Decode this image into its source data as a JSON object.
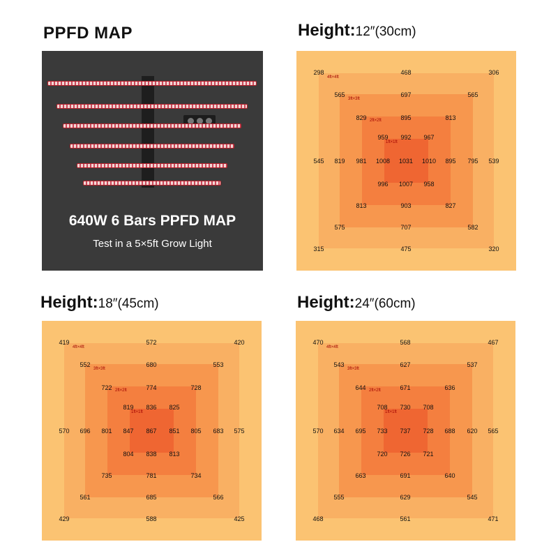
{
  "main_title": "PPFD MAP",
  "photo": {
    "caption": "640W 6 Bars PPFD MAP",
    "subcaption": "Test in a 5×5ft Grow Light"
  },
  "colors": {
    "zone_5x5": "#fbc372",
    "zone_4x4": "#f9b063",
    "zone_3x3": "#f7974e",
    "zone_2x2": "#f47f3f",
    "zone_1x1": "#ef6632",
    "photo_bg": "#3a3a3a"
  },
  "zone_labels": [
    "4ft×4ft",
    "3ft×3ft",
    "2ft×2ft",
    "1ft×1ft"
  ],
  "maps": [
    {
      "title_label": "Height:",
      "title_value": "12″(30cm)",
      "rows": [
        [
          "298",
          "468",
          "306"
        ],
        [
          "565",
          "697",
          "565"
        ],
        [
          "829",
          "895",
          "813"
        ],
        [
          "959",
          "992",
          "967"
        ],
        [
          "545",
          "819",
          "981",
          "1008",
          "1031",
          "1010",
          "895",
          "795",
          "539"
        ],
        [
          "996",
          "1007",
          "958"
        ],
        [
          "813",
          "903",
          "827"
        ],
        [
          "575",
          "707",
          "582"
        ],
        [
          "315",
          "475",
          "320"
        ]
      ]
    },
    {
      "title_label": "Height:",
      "title_value": "18″(45cm)",
      "rows": [
        [
          "419",
          "572",
          "420"
        ],
        [
          "552",
          "680",
          "553"
        ],
        [
          "722",
          "774",
          "728"
        ],
        [
          "819",
          "836",
          "825"
        ],
        [
          "570",
          "696",
          "801",
          "847",
          "867",
          "851",
          "805",
          "683",
          "575"
        ],
        [
          "804",
          "838",
          "813"
        ],
        [
          "735",
          "781",
          "734"
        ],
        [
          "561",
          "685",
          "566"
        ],
        [
          "429",
          "588",
          "425"
        ]
      ]
    },
    {
      "title_label": "Height:",
      "title_value": "24″(60cm)",
      "rows": [
        [
          "470",
          "568",
          "467"
        ],
        [
          "543",
          "627",
          "537"
        ],
        [
          "644",
          "671",
          "636"
        ],
        [
          "708",
          "730",
          "708"
        ],
        [
          "570",
          "634",
          "695",
          "733",
          "737",
          "728",
          "688",
          "620",
          "565"
        ],
        [
          "720",
          "726",
          "721"
        ],
        [
          "663",
          "691",
          "640"
        ],
        [
          "555",
          "629",
          "545"
        ],
        [
          "468",
          "561",
          "471"
        ]
      ]
    }
  ]
}
